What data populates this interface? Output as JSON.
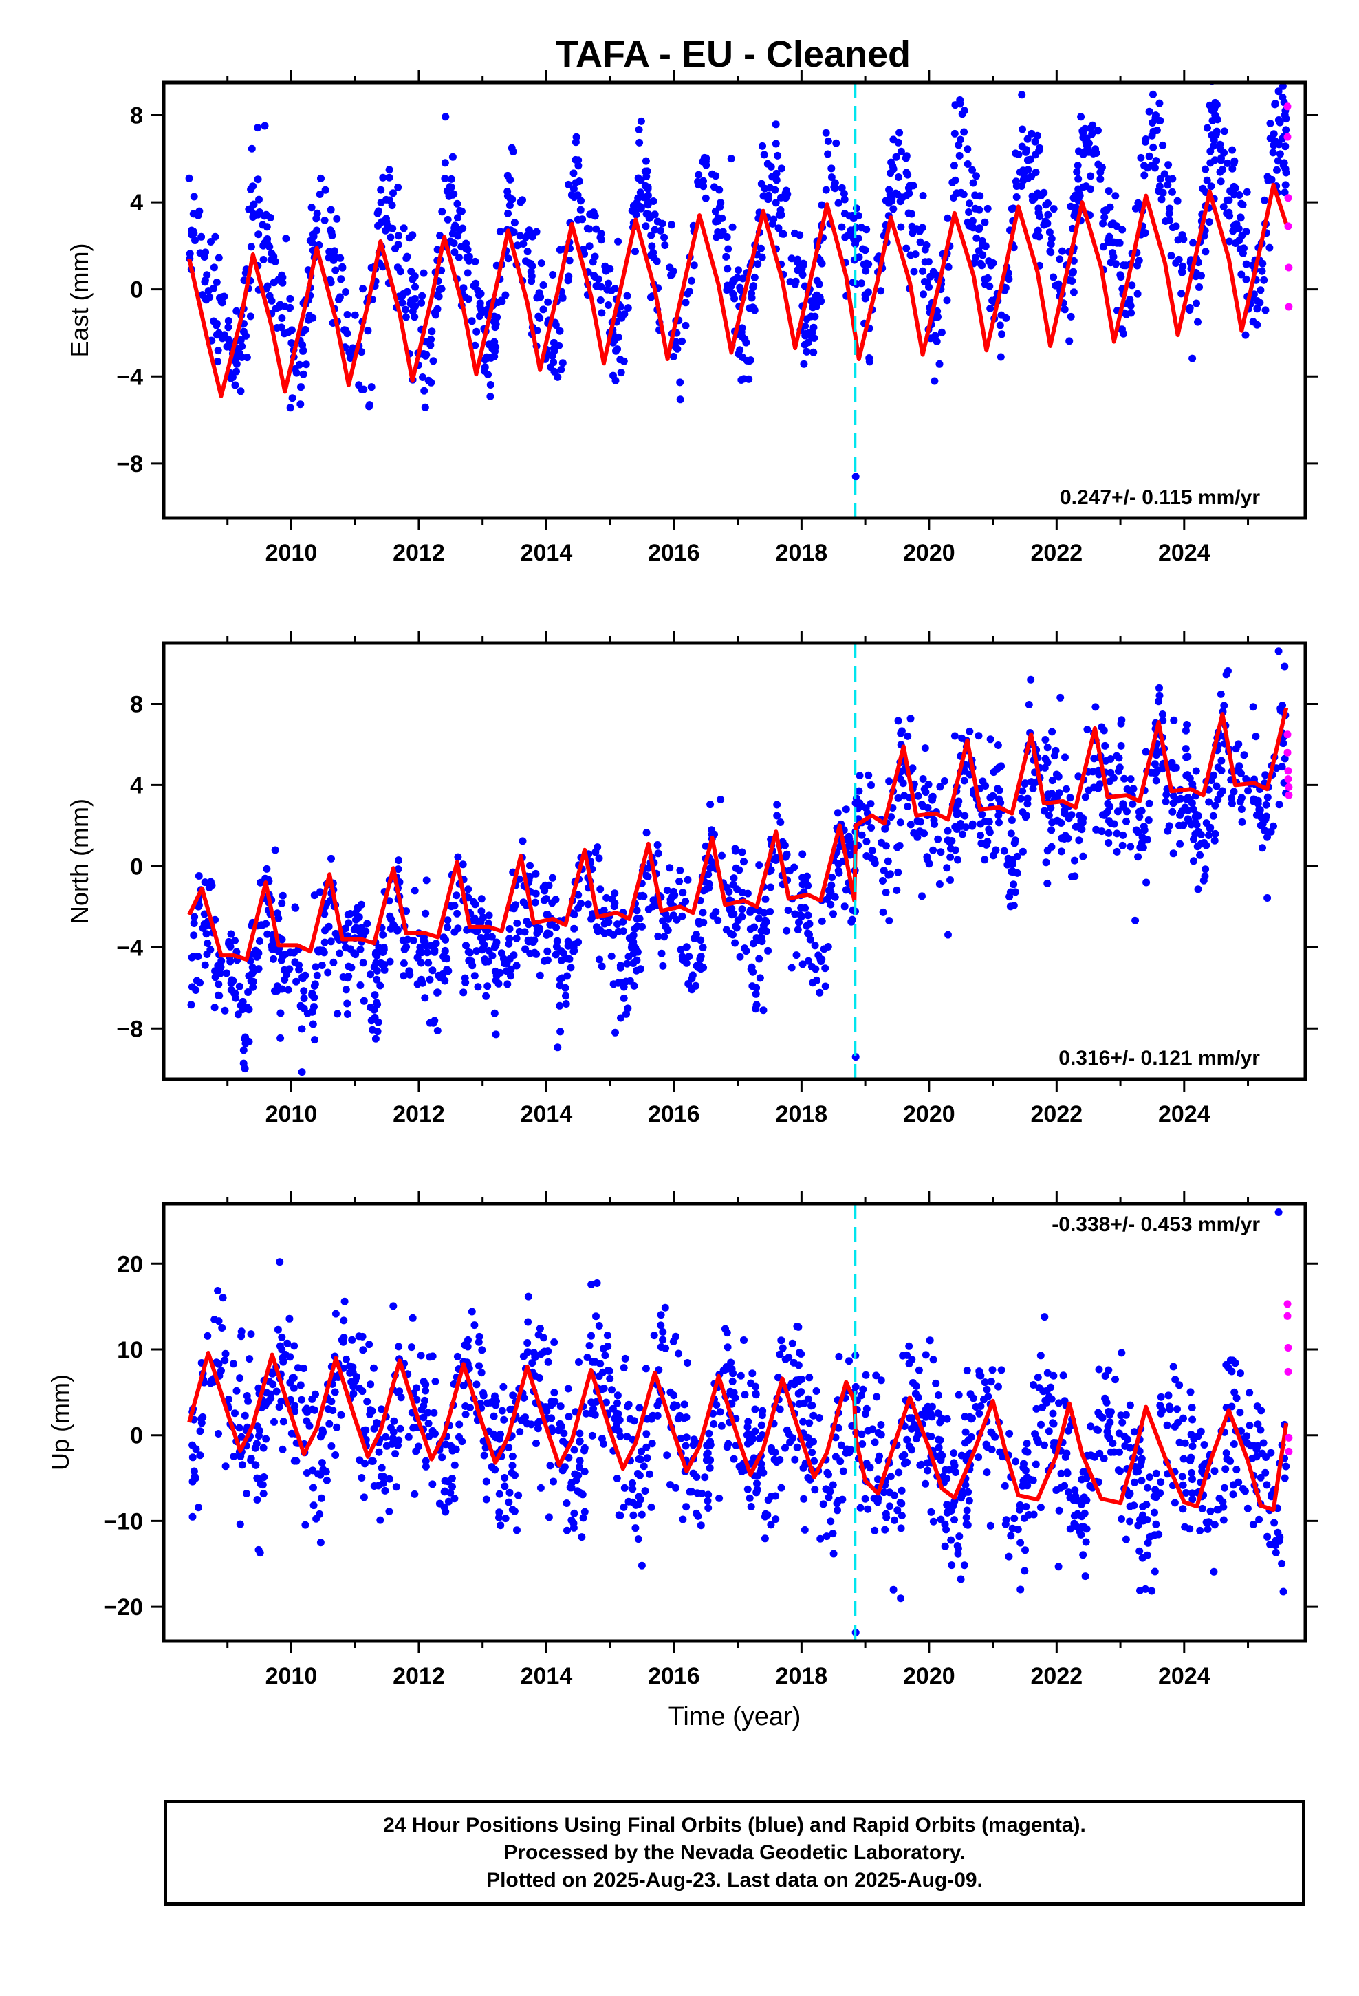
{
  "title": "TAFA  - EU - Cleaned",
  "xlabel": "Time (year)",
  "footer": [
    "24 Hour Positions Using Final Orbits (blue) and Rapid Orbits (magenta).",
    "Processed by the Nevada Geodetic Laboratory.",
    "Plotted on 2025-Aug-23. Last data on 2025-Aug-09."
  ],
  "colors": {
    "final_orbits": "#0000ff",
    "rapid_orbits": "#ff00ff",
    "model": "#ff0000",
    "offset_line": "#00e5ee"
  },
  "chart_data": [
    {
      "type": "scatter",
      "ylabel": "East (mm)",
      "rate_text": "0.247+/- 0.115 mm/yr",
      "xlim": [
        2008.0,
        2025.9
      ],
      "ylim": [
        -10.5,
        9.5
      ],
      "xticks": [
        2010,
        2012,
        2014,
        2016,
        2018,
        2020,
        2022,
        2024
      ],
      "xtick_labels": [
        "2010",
        "2012",
        "2014",
        "2016",
        "2018",
        "2020",
        "2022",
        "2024"
      ],
      "yticks": [
        -8,
        -4,
        0,
        4,
        8
      ],
      "ytick_labels": [
        "−8",
        "−4",
        "0",
        "4",
        "8"
      ],
      "offset_epoch": 2018.84,
      "grid": false,
      "model_curve": {
        "x": [
          2008.4,
          2008.7,
          2008.9,
          2009.2,
          2009.4,
          2009.7,
          2009.9,
          2010.2,
          2010.4,
          2010.7,
          2010.9,
          2011.2,
          2011.4,
          2011.7,
          2011.9,
          2012.2,
          2012.4,
          2012.7,
          2012.9,
          2013.2,
          2013.4,
          2013.7,
          2013.9,
          2014.2,
          2014.4,
          2014.7,
          2014.9,
          2015.2,
          2015.4,
          2015.7,
          2015.9,
          2016.2,
          2016.4,
          2016.7,
          2016.9,
          2017.2,
          2017.4,
          2017.7,
          2017.9,
          2018.2,
          2018.4,
          2018.7,
          2018.9,
          2019.2,
          2019.4,
          2019.7,
          2019.9,
          2020.2,
          2020.4,
          2020.7,
          2020.9,
          2021.2,
          2021.4,
          2021.7,
          2021.9,
          2022.2,
          2022.4,
          2022.7,
          2022.9,
          2023.2,
          2023.4,
          2023.7,
          2023.9,
          2024.2,
          2024.4,
          2024.7,
          2024.9,
          2025.2,
          2025.4,
          2025.6
        ],
        "y": [
          1.4,
          -2.5,
          -4.9,
          -1.5,
          1.6,
          -1.8,
          -4.7,
          -1.0,
          1.9,
          -1.4,
          -4.4,
          -0.7,
          2.2,
          -1.1,
          -4.2,
          -0.4,
          2.4,
          -0.9,
          -3.9,
          -0.1,
          2.7,
          -0.6,
          -3.7,
          0.2,
          3.0,
          -0.3,
          -3.4,
          0.5,
          3.2,
          0.0,
          -3.2,
          0.8,
          3.4,
          0.2,
          -2.9,
          1.0,
          3.6,
          0.4,
          -2.7,
          1.2,
          3.9,
          0.6,
          -3.2,
          0.5,
          3.3,
          0.3,
          -3.0,
          0.8,
          3.5,
          0.6,
          -2.8,
          1.0,
          3.8,
          0.8,
          -2.6,
          1.3,
          4.0,
          1.0,
          -2.4,
          1.5,
          4.3,
          1.2,
          -2.1,
          1.8,
          4.5,
          1.4,
          -1.9,
          2.0,
          4.8,
          3.0
        ]
      },
      "rapid_points": {
        "x": [
          2025.62,
          2025.62,
          2025.63,
          2025.63,
          2025.64,
          2025.64
        ],
        "y": [
          8.4,
          7.0,
          4.2,
          2.9,
          1.0,
          -0.8
        ]
      },
      "series_model": {
        "amplitude": 3.1,
        "semi_amplitude": 0.9,
        "phase": 0.3,
        "trend": 0.247,
        "offset": -0.4,
        "scatter": 1.4,
        "n": 1500,
        "seed": 11,
        "ymin": -8.6,
        "ymax": 9.1
      }
    },
    {
      "type": "scatter",
      "ylabel": "North (mm)",
      "rate_text": "0.316+/- 0.121 mm/yr",
      "xlim": [
        2008.0,
        2025.9
      ],
      "ylim": [
        -10.5,
        11.0
      ],
      "xticks": [
        2010,
        2012,
        2014,
        2016,
        2018,
        2020,
        2022,
        2024
      ],
      "xtick_labels": [
        "2010",
        "2012",
        "2014",
        "2016",
        "2018",
        "2020",
        "2022",
        "2024"
      ],
      "yticks": [
        -8,
        -4,
        0,
        4,
        8
      ],
      "ytick_labels": [
        "−8",
        "−4",
        "0",
        "4",
        "8"
      ],
      "offset_epoch": 2018.84,
      "grid": false,
      "model_curve": {
        "x": [
          2008.4,
          2008.6,
          2008.9,
          2009.1,
          2009.3,
          2009.6,
          2009.8,
          2010.1,
          2010.3,
          2010.6,
          2010.8,
          2011.1,
          2011.3,
          2011.6,
          2011.8,
          2012.1,
          2012.3,
          2012.6,
          2012.8,
          2013.1,
          2013.3,
          2013.6,
          2013.8,
          2014.1,
          2014.3,
          2014.6,
          2014.8,
          2015.1,
          2015.3,
          2015.6,
          2015.8,
          2016.1,
          2016.3,
          2016.6,
          2016.8,
          2017.1,
          2017.3,
          2017.6,
          2017.8,
          2018.1,
          2018.3,
          2018.6,
          2018.83,
          2018.85,
          2019.1,
          2019.3,
          2019.6,
          2019.8,
          2020.1,
          2020.3,
          2020.6,
          2020.8,
          2021.1,
          2021.3,
          2021.6,
          2021.8,
          2022.1,
          2022.3,
          2022.6,
          2022.8,
          2023.1,
          2023.3,
          2023.6,
          2023.8,
          2024.1,
          2024.3,
          2024.6,
          2024.8,
          2025.1,
          2025.3,
          2025.6
        ],
        "y": [
          -2.4,
          -1.1,
          -4.4,
          -4.4,
          -4.6,
          -0.8,
          -3.9,
          -3.9,
          -4.2,
          -0.4,
          -3.6,
          -3.6,
          -3.8,
          -0.1,
          -3.3,
          -3.3,
          -3.5,
          0.2,
          -3.0,
          -3.0,
          -3.2,
          0.5,
          -2.8,
          -2.6,
          -2.9,
          0.8,
          -2.5,
          -2.3,
          -2.6,
          1.1,
          -2.2,
          -2.0,
          -2.3,
          1.4,
          -1.9,
          -1.7,
          -2.0,
          1.7,
          -1.6,
          -1.4,
          -1.7,
          2.0,
          -1.7,
          2.0,
          2.5,
          2.1,
          5.9,
          2.5,
          2.6,
          2.3,
          6.2,
          2.8,
          2.9,
          2.6,
          6.5,
          3.1,
          3.2,
          2.9,
          6.8,
          3.4,
          3.5,
          3.2,
          7.1,
          3.7,
          3.8,
          3.5,
          7.5,
          4.0,
          4.1,
          3.8,
          7.8
        ]
      },
      "rapid_points": {
        "x": [
          2025.62,
          2025.62,
          2025.63,
          2025.63,
          2025.64,
          2025.64
        ],
        "y": [
          6.5,
          5.6,
          4.7,
          4.3,
          3.9,
          3.5
        ]
      },
      "series_model": {
        "amplitude": 1.6,
        "semi_amplitude": 1.1,
        "phase": 0.45,
        "trend": 0.316,
        "offset": -4.8,
        "step_epoch": 2018.84,
        "step": 3.6,
        "scatter": 1.5,
        "n": 1500,
        "seed": 23,
        "ymin": -9.4,
        "ymax": 10.6
      }
    },
    {
      "type": "scatter",
      "ylabel": "Up (mm)",
      "rate_text": "-0.338+/- 0.453 mm/yr",
      "xlim": [
        2008.0,
        2025.9
      ],
      "ylim": [
        -24.0,
        27.0
      ],
      "xticks": [
        2010,
        2012,
        2014,
        2016,
        2018,
        2020,
        2022,
        2024
      ],
      "xtick_labels": [
        "2010",
        "2012",
        "2014",
        "2016",
        "2018",
        "2020",
        "2022",
        "2024"
      ],
      "yticks": [
        -20,
        -10,
        0,
        10,
        20
      ],
      "ytick_labels": [
        "−20",
        "−10",
        "0",
        "10",
        "20"
      ],
      "offset_epoch": 2018.84,
      "grid": false,
      "model_curve": {
        "x": [
          2008.4,
          2008.7,
          2009.0,
          2009.2,
          2009.4,
          2009.7,
          2010.0,
          2010.2,
          2010.4,
          2010.7,
          2011.0,
          2011.2,
          2011.4,
          2011.7,
          2012.0,
          2012.2,
          2012.4,
          2012.7,
          2013.0,
          2013.2,
          2013.4,
          2013.7,
          2014.0,
          2014.2,
          2014.4,
          2014.7,
          2015.0,
          2015.2,
          2015.4,
          2015.7,
          2016.0,
          2016.2,
          2016.4,
          2016.7,
          2017.0,
          2017.2,
          2017.4,
          2017.7,
          2018.0,
          2018.2,
          2018.4,
          2018.7,
          2018.83,
          2018.85,
          2019.0,
          2019.2,
          2019.4,
          2019.7,
          2020.0,
          2020.2,
          2020.4,
          2020.7,
          2021.0,
          2021.2,
          2021.4,
          2021.7,
          2022.0,
          2022.2,
          2022.4,
          2022.7,
          2023.0,
          2023.2,
          2023.4,
          2023.7,
          2024.0,
          2024.2,
          2024.4,
          2024.7,
          2025.0,
          2025.2,
          2025.4,
          2025.6
        ],
        "y": [
          1.5,
          9.6,
          2.6,
          -1.8,
          1.2,
          9.4,
          2.3,
          -2.2,
          0.8,
          9.0,
          1.9,
          -2.5,
          0.5,
          8.7,
          1.6,
          -2.8,
          0.1,
          8.3,
          1.2,
          -3.2,
          -0.2,
          8.0,
          0.9,
          -3.5,
          -0.6,
          7.6,
          0.5,
          -3.9,
          -0.9,
          7.3,
          0.2,
          -4.2,
          -1.3,
          6.9,
          -0.2,
          -4.6,
          -1.6,
          6.6,
          -0.5,
          -4.9,
          -2.0,
          6.2,
          4.0,
          -0.4,
          -5.3,
          -6.8,
          -2.3,
          4.4,
          -1.5,
          -6.2,
          -7.3,
          -2.0,
          4.0,
          -1.9,
          -7.0,
          -7.5,
          -2.3,
          3.7,
          -2.2,
          -7.4,
          -7.9,
          -2.8,
          3.3,
          -2.6,
          -7.8,
          -8.3,
          -3.2,
          2.9,
          -3.0,
          -8.2,
          -8.7,
          1.4
        ]
      },
      "rapid_points": {
        "x": [
          2025.62,
          2025.62,
          2025.63,
          2025.63,
          2025.64,
          2025.64
        ],
        "y": [
          15.3,
          13.9,
          10.2,
          7.4,
          -0.3,
          -1.9
        ]
      },
      "series_model": {
        "amplitude": 5.0,
        "semi_amplitude": 1.6,
        "phase": 0.62,
        "trend": -0.338,
        "offset": 3.2,
        "step_epoch": 2018.84,
        "step": -1.6,
        "scatter": 4.6,
        "n": 1500,
        "seed": 37,
        "ymin": -23.0,
        "ymax": 26.0
      }
    }
  ]
}
